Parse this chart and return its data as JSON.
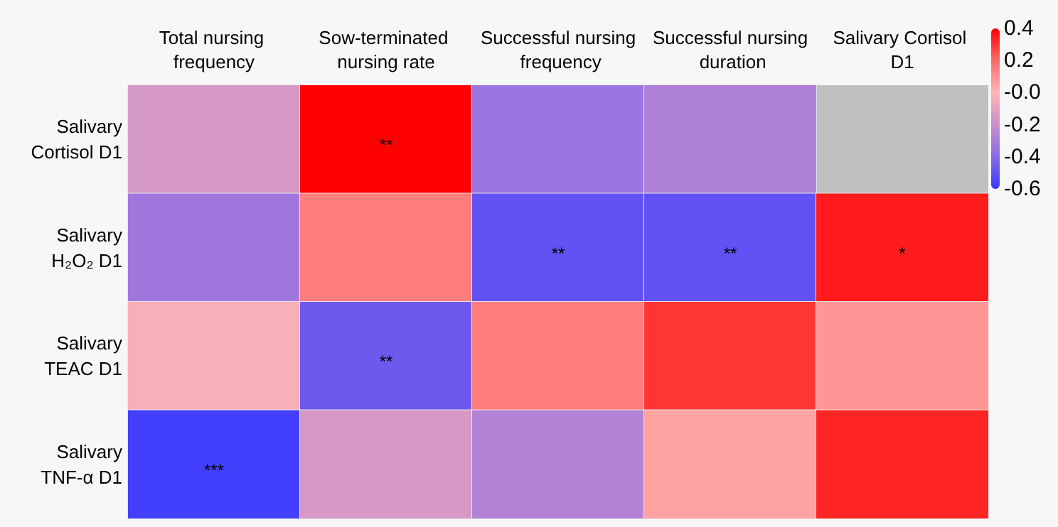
{
  "chart_data": {
    "type": "heatmap",
    "categories": [
      "Total nursing frequency",
      "Sow-terminated nursing rate",
      "Successful nursing frequency",
      "Successful nursing duration",
      "Salivary Cortisol D1"
    ],
    "y_categories": [
      "Salivary Cortisol D1",
      "Salivary H₂O₂ D1",
      "Salivary TEAC D1",
      "Salivary TNF-α D1"
    ],
    "cells": [
      [
        -0.15,
        0.4,
        -0.35,
        -0.28,
        null
      ],
      [
        -0.33,
        0.15,
        -0.5,
        -0.5,
        0.35
      ],
      [
        -0.03,
        -0.47,
        0.15,
        0.3,
        0.08
      ],
      [
        -0.58,
        -0.15,
        -0.27,
        0.05,
        0.33
      ]
    ],
    "cell_labels": [
      [
        null,
        "**",
        null,
        null,
        null
      ],
      [
        null,
        null,
        "**",
        "**",
        "*"
      ],
      [
        null,
        "**",
        null,
        null,
        null
      ],
      [
        "***",
        null,
        null,
        null,
        null
      ]
    ],
    "clim": [
      -0.6,
      0.4
    ],
    "cticks": [
      0.4,
      0.2,
      {
        "value": 0,
        "label": "-0.0"
      },
      -0.2,
      -0.4,
      -0.6
    ]
  }
}
